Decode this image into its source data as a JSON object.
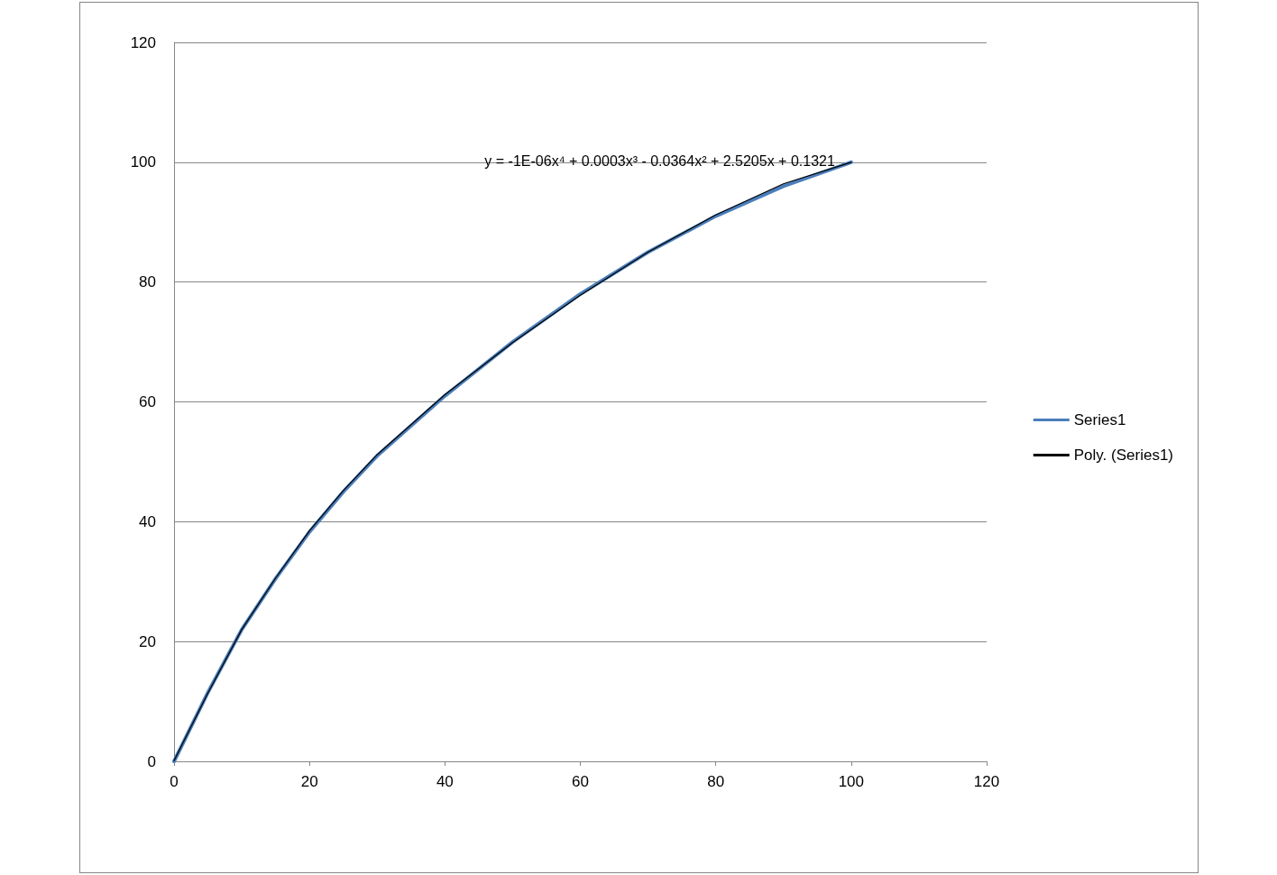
{
  "chart_data": {
    "type": "line",
    "x": [
      0,
      5,
      10,
      15,
      20,
      25,
      30,
      40,
      50,
      60,
      70,
      80,
      90,
      100
    ],
    "series": [
      {
        "name": "Series1",
        "color": "#4a7ebb",
        "values": [
          0,
          11.5,
          22,
          30.5,
          38.3,
          45,
          51,
          61,
          70,
          78,
          85,
          91,
          96,
          100
        ]
      },
      {
        "name": "Poly. (Series1)",
        "color": "#000000",
        "type": "line",
        "x": [
          0,
          5,
          10,
          15,
          20,
          25,
          30,
          40,
          50,
          60,
          70,
          80,
          90,
          100
        ],
        "values": [
          0.1,
          11.4,
          22,
          30.6,
          38.5,
          45.2,
          51.2,
          61.2,
          69.9,
          77.8,
          85,
          91.2,
          96.4,
          100
        ]
      }
    ],
    "xlim": [
      0,
      120
    ],
    "xticks": [
      0,
      20,
      40,
      60,
      80,
      100,
      120
    ],
    "ylim": [
      0,
      120
    ],
    "yticks": [
      0,
      20,
      40,
      60,
      80,
      100,
      120
    ],
    "grid": "y",
    "legend": "right",
    "marker": "none",
    "line_style": "solid",
    "annotations": [
      "y = -1E-06x⁴ + 0.0003x³ - 0.0364x² + 2.5205x + 0.1321"
    ]
  }
}
